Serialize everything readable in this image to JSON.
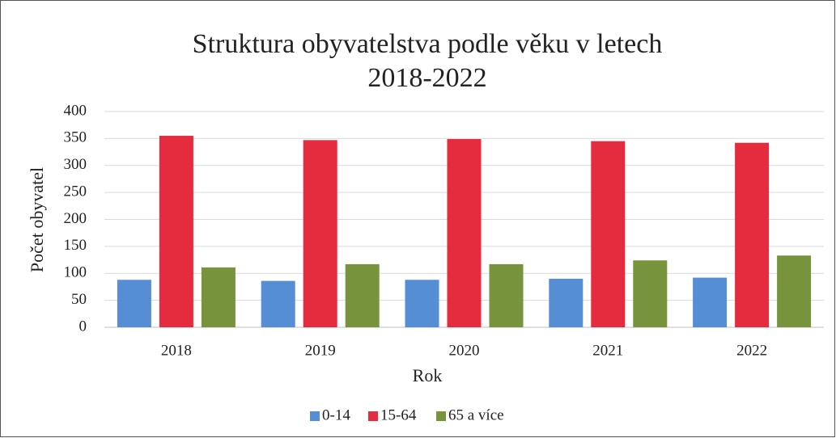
{
  "chart_data": {
    "type": "bar",
    "title": [
      "Struktura obyvatelstva podle věku v letech",
      "2018-2022"
    ],
    "x_label": "Rok",
    "y_label": "Počet obyvatel",
    "categories": [
      "2018",
      "2019",
      "2020",
      "2021",
      "2022"
    ],
    "series": [
      {
        "name": "0-14",
        "color": "#558ed5",
        "values": [
          88,
          86,
          88,
          90,
          92
        ]
      },
      {
        "name": "15-64",
        "color": "#e52b3e",
        "values": [
          355,
          347,
          349,
          345,
          342
        ]
      },
      {
        "name": "65 a více",
        "color": "#77933c",
        "values": [
          111,
          117,
          117,
          124,
          133
        ]
      }
    ],
    "ylim": [
      0,
      400
    ],
    "yticks": [
      0,
      50,
      100,
      150,
      200,
      250,
      300,
      350,
      400
    ],
    "grid": true,
    "legend": "bottom"
  }
}
